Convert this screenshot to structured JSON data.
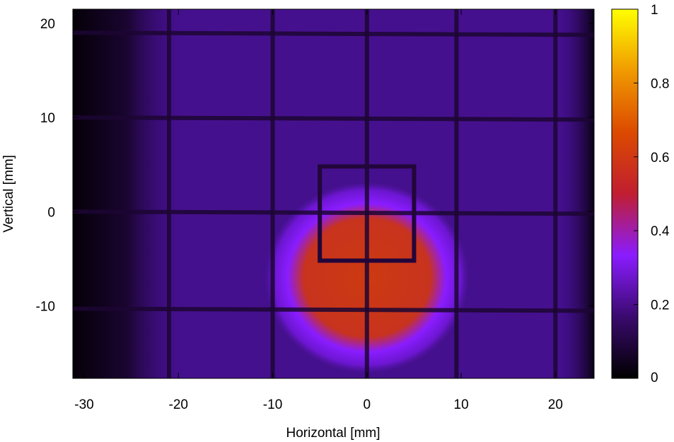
{
  "chart_data": {
    "type": "heatmap",
    "title": "",
    "xlabel": "Horizontal [mm]",
    "ylabel": "Vertical [mm]",
    "xlim": [
      -31.2,
      24.1
    ],
    "ylim": [
      -17.7,
      21.5
    ],
    "x_ticks": [
      -30,
      -20,
      -10,
      0,
      10,
      20
    ],
    "y_ticks": [
      -10,
      0,
      10,
      20
    ],
    "colorbar": {
      "range": [
        0,
        1
      ],
      "ticks": [
        0,
        0.2,
        0.4,
        0.6,
        0.8,
        1
      ],
      "colors": [
        "#000000",
        "#3a0a6e",
        "#8a1cff",
        "#c01e30",
        "#dc4a00",
        "#f09a00",
        "#ffff00"
      ]
    },
    "grid_lines": {
      "vertical_x": [
        -21,
        -10,
        0,
        9.5,
        20
      ],
      "horizontal_y": [
        19,
        10,
        0,
        -10.3
      ]
    },
    "inner_square": {
      "x": [
        -5,
        5
      ],
      "y": [
        -5.2,
        4.8
      ]
    },
    "beam_spot": {
      "x_center": 0,
      "y_center": -7,
      "x_halfwidth": 8,
      "y_halfheight": 7.5,
      "peak_value": 0.5
    },
    "background_level": 0.13
  }
}
